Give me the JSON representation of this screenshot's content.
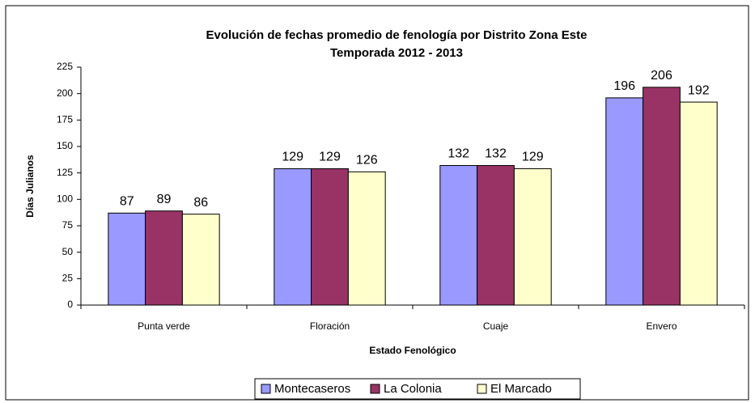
{
  "chart_data": {
    "type": "bar",
    "title": "Evolución de fechas promedio de fenología por Distrito Zona Este",
    "subtitle": "Temporada 2012 - 2013",
    "x_label": "Estado Fenológico",
    "y_label": "Días Julianos",
    "categories": [
      "Punta verde",
      "Floración",
      "Cuaje",
      "Envero"
    ],
    "series": [
      {
        "name": "Montecaseros",
        "color": "#9999ff",
        "values": [
          87,
          129,
          132,
          196
        ]
      },
      {
        "name": "La Colonia",
        "color": "#993366",
        "values": [
          89,
          129,
          132,
          206
        ]
      },
      {
        "name": "El Marcado",
        "color": "#ffffcc",
        "values": [
          86,
          126,
          129,
          192
        ]
      }
    ],
    "ylim": [
      0,
      225
    ],
    "yticks": [
      0,
      25,
      50,
      75,
      100,
      125,
      150,
      175,
      200,
      225
    ],
    "grid": false,
    "legend": "bottom"
  }
}
